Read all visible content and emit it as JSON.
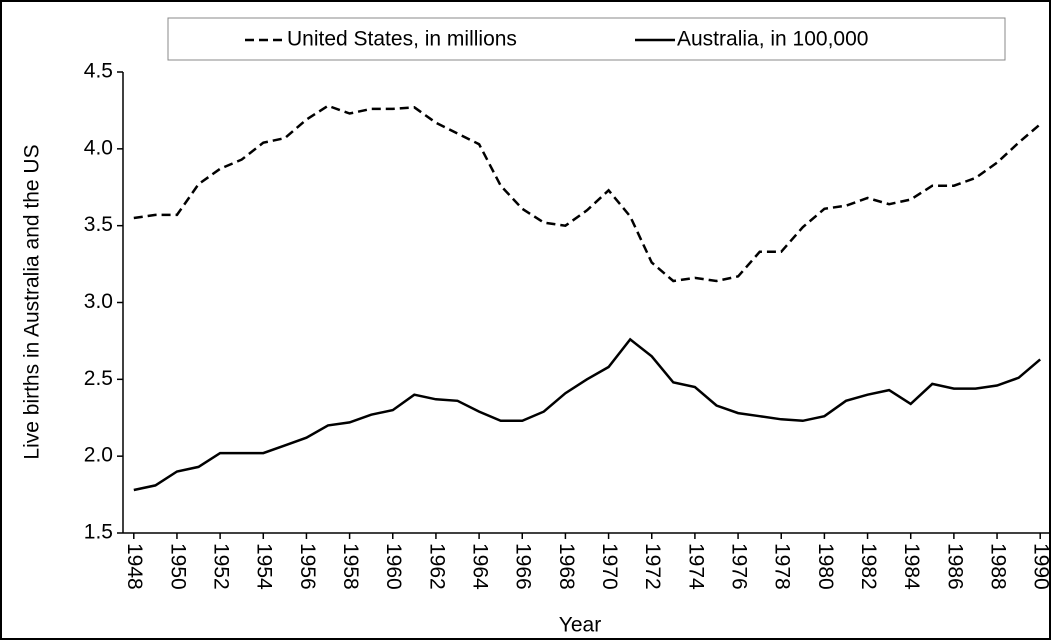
{
  "chart_data": {
    "type": "line",
    "x_label": "Year",
    "y_label": "Live births in Australia and the US",
    "x": [
      1948,
      1949,
      1950,
      1951,
      1952,
      1953,
      1954,
      1955,
      1956,
      1957,
      1958,
      1959,
      1960,
      1961,
      1962,
      1963,
      1964,
      1965,
      1966,
      1967,
      1968,
      1969,
      1970,
      1971,
      1972,
      1973,
      1974,
      1975,
      1976,
      1977,
      1978,
      1979,
      1980,
      1981,
      1982,
      1983,
      1984,
      1985,
      1986,
      1987,
      1988,
      1989,
      1990
    ],
    "series": [
      {
        "name": "United States, in millions",
        "color": "#000000",
        "line_style": "dashed",
        "values": [
          3.55,
          3.57,
          3.57,
          3.77,
          3.87,
          3.93,
          4.04,
          4.07,
          4.19,
          4.28,
          4.23,
          4.26,
          4.26,
          4.27,
          4.17,
          4.1,
          4.03,
          3.76,
          3.61,
          3.52,
          3.5,
          3.6,
          3.73,
          3.56,
          3.26,
          3.14,
          3.16,
          3.14,
          3.17,
          3.33,
          3.33,
          3.49,
          3.61,
          3.63,
          3.68,
          3.64,
          3.67,
          3.76,
          3.76,
          3.81,
          3.91,
          4.04,
          4.16
        ]
      },
      {
        "name": "Australia, in 100,000",
        "color": "#000000",
        "line_style": "solid",
        "values": [
          1.78,
          1.81,
          1.9,
          1.93,
          2.02,
          2.02,
          2.02,
          2.07,
          2.12,
          2.2,
          2.22,
          2.27,
          2.3,
          2.4,
          2.37,
          2.36,
          2.29,
          2.23,
          2.23,
          2.29,
          2.41,
          2.5,
          2.58,
          2.76,
          2.65,
          2.48,
          2.45,
          2.33,
          2.28,
          2.26,
          2.24,
          2.23,
          2.26,
          2.36,
          2.4,
          2.43,
          2.34,
          2.47,
          2.44,
          2.44,
          2.46,
          2.51,
          2.63
        ]
      }
    ],
    "xlim": [
      1947.5,
      1990.5
    ],
    "xticks": [
      1948,
      1950,
      1952,
      1954,
      1956,
      1958,
      1960,
      1962,
      1964,
      1966,
      1968,
      1970,
      1972,
      1974,
      1976,
      1978,
      1980,
      1982,
      1984,
      1986,
      1988,
      1990
    ],
    "ylim": [
      1.5,
      4.5
    ],
    "yticks": [
      1.5,
      {
        "value": 2,
        "label": "2.0"
      },
      2.5,
      {
        "value": 3,
        "label": "3.0"
      },
      3.5,
      {
        "value": 4,
        "label": "4.0"
      },
      4.5
    ],
    "grid": false,
    "legend": "top"
  }
}
